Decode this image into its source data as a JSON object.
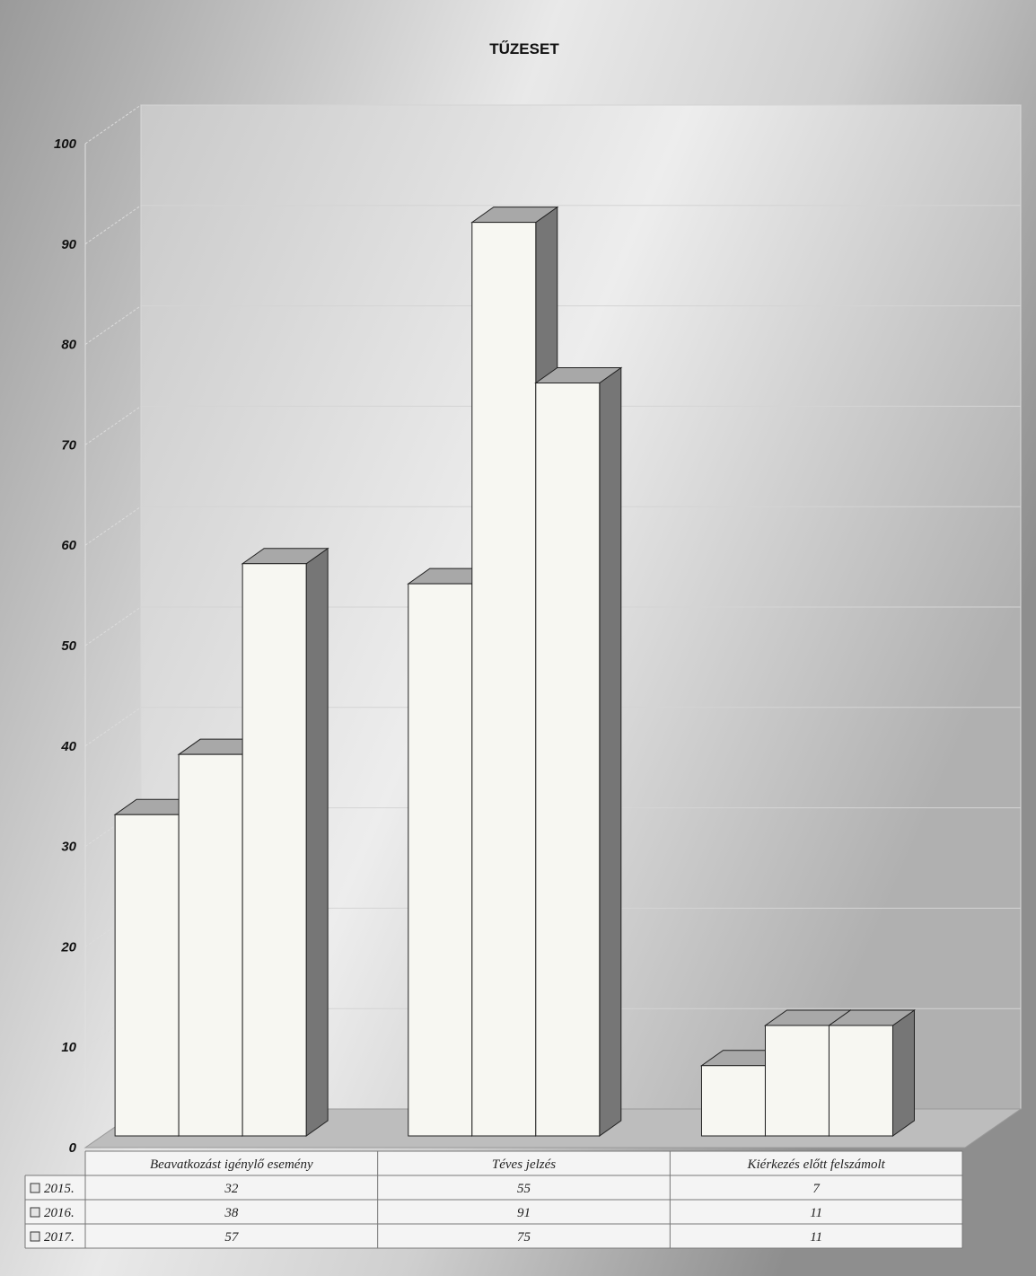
{
  "chart_data": {
    "type": "bar",
    "title": "TŰZESET",
    "categories": [
      "Beavatkozást igénylő esemény",
      "Téves jelzés",
      "Kiérkezés előtt felszámolt"
    ],
    "series": [
      {
        "name": "2015.",
        "values": [
          32,
          55,
          7
        ]
      },
      {
        "name": "2016.",
        "values": [
          38,
          91,
          11
        ]
      },
      {
        "name": "2017.",
        "values": [
          57,
          75,
          11
        ]
      }
    ],
    "ylim": [
      0,
      100
    ],
    "yticks": [
      0,
      10,
      20,
      30,
      40,
      50,
      60,
      70,
      80,
      90,
      100
    ],
    "grid": true,
    "legend": "data-table-bottom",
    "colors": {
      "bar_front": "#f7f7f2",
      "bar_top": "#a8a8a8",
      "bar_side": "#767676",
      "floor": "#bdbdbd"
    }
  }
}
